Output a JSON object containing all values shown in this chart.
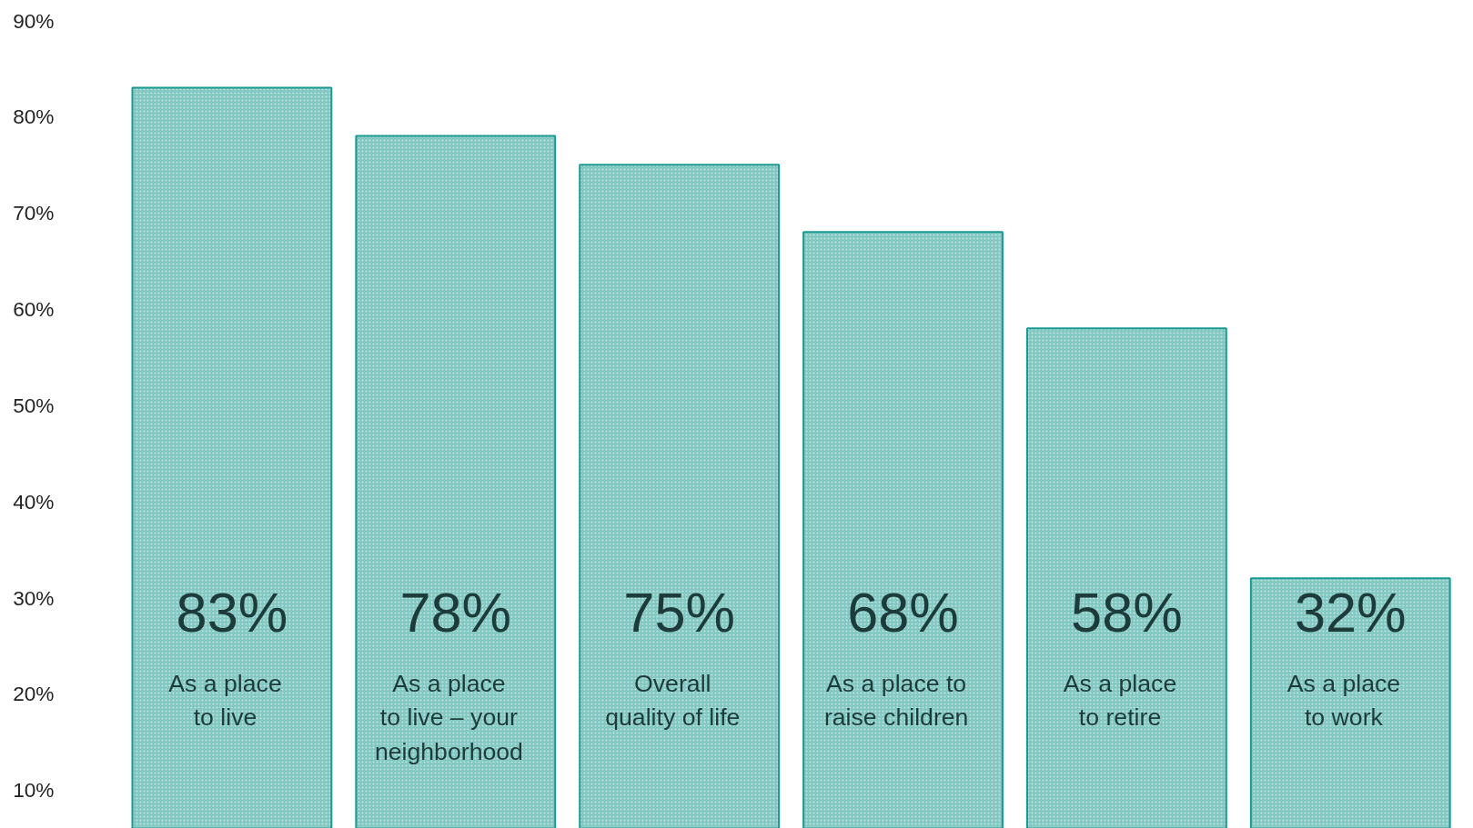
{
  "chart_data": {
    "type": "bar",
    "categories": [
      "As a place\nto live",
      "As a place\nto live – your\nneighborhood",
      "Overall\nquality of life",
      "As a place to\nraise children",
      "As a place\nto retire",
      "As a place\nto work"
    ],
    "values": [
      83,
      78,
      75,
      68,
      58,
      32
    ],
    "color": "#1a9a92",
    "value_labels": [
      "83%",
      "78%",
      "75%",
      "68%",
      "58%",
      "32%"
    ],
    "ylim": [
      6,
      90
    ],
    "yticks": [
      {
        "value": 10,
        "label": "10%"
      },
      {
        "value": 20,
        "label": "20%"
      },
      {
        "value": 30,
        "label": "30%"
      },
      {
        "value": 40,
        "label": "40%"
      },
      {
        "value": 50,
        "label": "50%"
      },
      {
        "value": 60,
        "label": "60%"
      },
      {
        "value": 70,
        "label": "70%"
      },
      {
        "value": 80,
        "label": "80%"
      },
      {
        "value": 90,
        "label": "90%"
      }
    ],
    "grid": false
  }
}
